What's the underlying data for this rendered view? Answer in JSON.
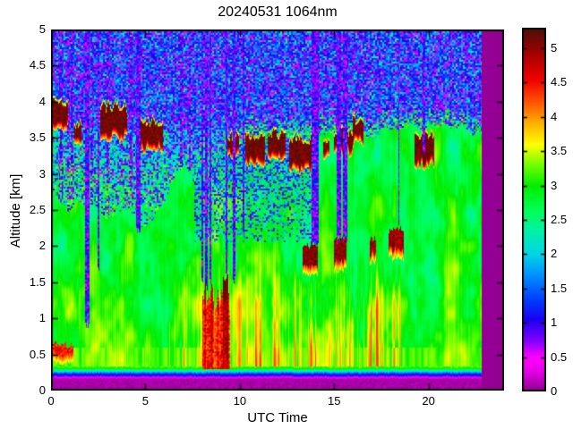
{
  "chart": {
    "title": "20240531 1064nm",
    "xlabel": "UTC Time",
    "ylabel": "Altitude [km]"
  },
  "chart_data": {
    "type": "heatmap",
    "title": "20240531 1064nm",
    "xlabel": "UTC Time",
    "ylabel": "Altitude [km]",
    "x_range": [
      0,
      24
    ],
    "y_range": [
      0,
      5
    ],
    "x_ticks": [
      0,
      5,
      10,
      15,
      20
    ],
    "y_ticks": [
      0,
      0.5,
      1,
      1.5,
      2,
      2.5,
      3,
      3.5,
      4,
      4.5,
      5
    ],
    "grid": false,
    "colorbar": {
      "range": [
        0,
        5.3
      ],
      "ticks": [
        0,
        0.5,
        1,
        1.5,
        2,
        2.5,
        3,
        3.5,
        4,
        4.5,
        5
      ],
      "position": "right"
    },
    "colormap": [
      [
        0.0,
        "#8B008B"
      ],
      [
        0.3,
        "#E600E6"
      ],
      [
        0.5,
        "#FF00FF"
      ],
      [
        0.75,
        "#8000FF"
      ],
      [
        1.05,
        "#1C00F0"
      ],
      [
        1.35,
        "#0040FF"
      ],
      [
        1.7,
        "#0090FF"
      ],
      [
        2.0,
        "#00D5E8"
      ],
      [
        2.35,
        "#00F2A8"
      ],
      [
        2.65,
        "#00FF55"
      ],
      [
        3.0,
        "#00EE00"
      ],
      [
        3.3,
        "#70FF00"
      ],
      [
        3.6,
        "#FFFF00"
      ],
      [
        3.9,
        "#FFB400"
      ],
      [
        4.2,
        "#FF5A00"
      ],
      [
        4.55,
        "#F00000"
      ],
      [
        4.9,
        "#AA0000"
      ],
      [
        5.3,
        "#4A100A"
      ]
    ],
    "no_data": {
      "t_start": 22.8
    },
    "surface_profile": [
      [
        0.165,
        0.15
      ],
      [
        0.2,
        0.8
      ],
      [
        0.235,
        1.35
      ],
      [
        0.265,
        2.1
      ],
      [
        0.3,
        2.9
      ],
      [
        0.34,
        3.3
      ]
    ],
    "aerosol_top_km": [
      [
        0,
        2.75
      ],
      [
        1,
        2.5
      ],
      [
        2,
        2.65
      ],
      [
        3,
        2.35
      ],
      [
        4,
        2.5
      ],
      [
        5,
        2.3
      ],
      [
        6,
        2.6
      ],
      [
        6.6,
        3.0
      ],
      [
        7,
        3.15
      ],
      [
        7.6,
        2.9
      ],
      [
        8,
        3.3
      ],
      [
        8.6,
        3.05
      ],
      [
        9.2,
        3.35
      ],
      [
        10,
        3.4
      ],
      [
        11,
        3.5
      ],
      [
        12,
        3.45
      ],
      [
        13,
        3.5
      ],
      [
        14,
        3.5
      ],
      [
        15,
        3.55
      ],
      [
        16,
        3.6
      ],
      [
        17,
        3.55
      ],
      [
        18,
        3.6
      ],
      [
        19,
        3.65
      ],
      [
        20,
        3.6
      ],
      [
        21,
        3.65
      ],
      [
        22,
        3.6
      ],
      [
        22.8,
        3.55
      ]
    ],
    "clouds": [
      {
        "t0": 0.0,
        "t1": 0.9,
        "z0": 3.72,
        "z1": 3.98
      },
      {
        "t0": 1.25,
        "t1": 1.6,
        "z0": 3.5,
        "z1": 3.68
      },
      {
        "t0": 2.6,
        "t1": 4.05,
        "z0": 3.58,
        "z1": 3.92
      },
      {
        "t0": 4.55,
        "t1": 5.95,
        "z0": 3.42,
        "z1": 3.72
      },
      {
        "t0": 9.3,
        "t1": 9.95,
        "z0": 3.32,
        "z1": 3.52
      },
      {
        "t0": 10.3,
        "t1": 11.35,
        "z0": 3.22,
        "z1": 3.5
      },
      {
        "t0": 11.5,
        "t1": 12.45,
        "z0": 3.28,
        "z1": 3.55
      },
      {
        "t0": 12.6,
        "t1": 13.95,
        "z0": 3.12,
        "z1": 3.48
      },
      {
        "t0": 14.4,
        "t1": 14.75,
        "z0": 3.3,
        "z1": 3.5
      },
      {
        "t0": 15.0,
        "t1": 16.0,
        "z0": 3.36,
        "z1": 3.58
      },
      {
        "t0": 16.0,
        "t1": 16.55,
        "z0": 3.5,
        "z1": 3.74
      },
      {
        "t0": 19.25,
        "t1": 20.3,
        "z0": 3.2,
        "z1": 3.55
      }
    ],
    "low_clouds": [
      {
        "t0": 0.0,
        "t1": 1.2,
        "z0": 0.5,
        "z1": 0.62,
        "strength": 4.2
      },
      {
        "t0": 13.35,
        "t1": 14.15,
        "z0": 1.72,
        "z1": 2.02,
        "strength": 4.8
      },
      {
        "t0": 15.0,
        "t1": 15.65,
        "z0": 1.78,
        "z1": 2.1,
        "strength": 4.8
      },
      {
        "t0": 16.9,
        "t1": 17.2,
        "z0": 1.9,
        "z1": 2.12,
        "strength": 4.7
      },
      {
        "t0": 17.9,
        "t1": 18.7,
        "z0": 1.95,
        "z1": 2.22,
        "strength": 4.7
      }
    ],
    "attenuation_columns": [
      {
        "t0": 1.78,
        "t1": 2.02,
        "z0": 0.9
      },
      {
        "t0": 2.45,
        "t1": 2.58,
        "z0": 1.7
      },
      {
        "t0": 4.5,
        "t1": 4.75,
        "z0": 2.2
      },
      {
        "t0": 7.95,
        "t1": 8.06,
        "z0": 1.5
      },
      {
        "t0": 8.16,
        "t1": 8.3,
        "z0": 1.45
      },
      {
        "t0": 8.4,
        "t1": 8.5,
        "z0": 1.5
      },
      {
        "t0": 9.25,
        "t1": 9.35,
        "z0": 1.6
      },
      {
        "t0": 9.65,
        "t1": 9.75,
        "z0": 1.55
      },
      {
        "t0": 10.15,
        "t1": 10.24,
        "z0": 2.2
      },
      {
        "t0": 13.78,
        "t1": 14.18,
        "z0": 2.0
      },
      {
        "t0": 15.12,
        "t1": 15.35,
        "z0": 2.08
      },
      {
        "t0": 15.45,
        "t1": 15.68,
        "z0": 2.12
      },
      {
        "t0": 18.38,
        "t1": 18.46,
        "z0": 2.25
      },
      {
        "t0": 19.7,
        "t1": 19.84,
        "z0": 3.3
      }
    ],
    "speckle_columns": [
      [
        0.45,
        0.62
      ],
      [
        0.85,
        1.0
      ],
      [
        1.05,
        1.18
      ],
      [
        2.1,
        2.25
      ],
      [
        2.95,
        3.1
      ],
      [
        4.15,
        4.3
      ],
      [
        6.85,
        6.95
      ],
      [
        7.3,
        7.42
      ],
      [
        21.1,
        21.22
      ],
      [
        21.9,
        22.0
      ]
    ],
    "rain": {
      "t0": 8.0,
      "t1": 9.5,
      "z0": 0.9,
      "z1": 1.75
    },
    "shadow": {
      "t0": 7.6,
      "t1": 14.0,
      "z0": 2.05
    },
    "streak_zone": {
      "t0": 6.2,
      "t1": 18.6,
      "z_top": 2.1
    }
  }
}
